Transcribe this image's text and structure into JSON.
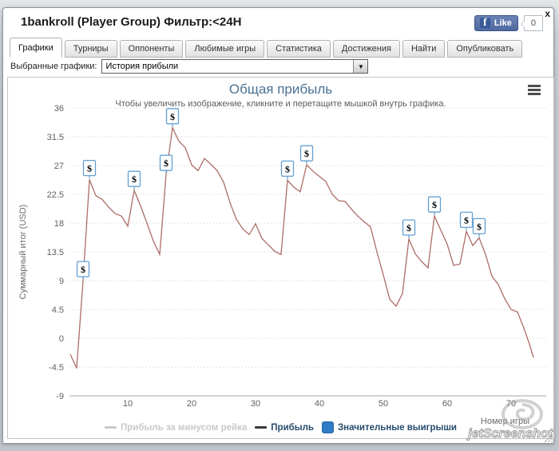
{
  "window": {
    "title": "1bankroll (Player Group) Фильтр:<24H",
    "close_glyph": "x"
  },
  "fb_widget": {
    "like_label": "Like",
    "count": "0"
  },
  "tabs": [
    {
      "label": "Графики",
      "active": true
    },
    {
      "label": "Турниры",
      "active": false
    },
    {
      "label": "Оппоненты",
      "active": false
    },
    {
      "label": "Любимые игры",
      "active": false
    },
    {
      "label": "Статистика",
      "active": false
    },
    {
      "label": "Достижения",
      "active": false
    },
    {
      "label": "Найти",
      "active": false
    },
    {
      "label": "Опубликовать",
      "active": false
    }
  ],
  "graph_select": {
    "label": "Выбранные графики:",
    "value": "История прибыли"
  },
  "watermark": {
    "text": "jetScreenshot"
  },
  "colors": {
    "accent_blue": "#2f7bc4",
    "profit_line": "#ad6d68",
    "flag_border": "#64a0d2",
    "hidden_legend": "#c9c9c9",
    "legend_text": "#274b6d",
    "chart_title": "#4a7294",
    "axis_text": "#606060"
  },
  "chart_data": {
    "type": "line",
    "title": "Общая прибыль",
    "subtitle": "Чтобы увеличить изображение, кликните и перетащите мышкой внутрь графика.",
    "xlabel": "Номер игры",
    "ylabel": "Суммарный итог (USD)",
    "xlim": [
      0.9,
      75.5
    ],
    "ylim": [
      -9,
      36
    ],
    "xticks": [
      10,
      20,
      30,
      40,
      50,
      60,
      70
    ],
    "yticks": [
      36,
      31.5,
      27,
      22.5,
      18,
      13.5,
      9,
      4.5,
      0,
      -4.5,
      -9
    ],
    "grid": "horizontal-dotted",
    "legend_position": "bottom-center",
    "series": [
      {
        "name": "Прибыль за минусом рейка",
        "type": "line",
        "visible": false,
        "color": "#cccccc",
        "points": []
      },
      {
        "name": "Прибыль",
        "type": "line",
        "visible": true,
        "color": "#ad6d68",
        "legend_swatch_color": "#3a3a3a",
        "points": [
          [
            1,
            -2.5
          ],
          [
            2,
            -4.7
          ],
          [
            3,
            9
          ],
          [
            4,
            24.8
          ],
          [
            5,
            22.3
          ],
          [
            6,
            21.7
          ],
          [
            7,
            20.5
          ],
          [
            8,
            19.5
          ],
          [
            9,
            19.1
          ],
          [
            10,
            17.5
          ],
          [
            11,
            23.1
          ],
          [
            12,
            20.7
          ],
          [
            13,
            18
          ],
          [
            14,
            15.2
          ],
          [
            15,
            13.1
          ],
          [
            16,
            25.6
          ],
          [
            17,
            32.9
          ],
          [
            18,
            30.8
          ],
          [
            19,
            29.8
          ],
          [
            20,
            27.1
          ],
          [
            21,
            26.2
          ],
          [
            22,
            28.1
          ],
          [
            23,
            27.2
          ],
          [
            24,
            26.2
          ],
          [
            25,
            24.4
          ],
          [
            26,
            21.2
          ],
          [
            27,
            18.6
          ],
          [
            28,
            17.1
          ],
          [
            29,
            16.2
          ],
          [
            30,
            17.9
          ],
          [
            31,
            15.6
          ],
          [
            32,
            14.6
          ],
          [
            33,
            13.6
          ],
          [
            34,
            13.1
          ],
          [
            35,
            24.7
          ],
          [
            36,
            23.6
          ],
          [
            37,
            22.9
          ],
          [
            38,
            27.1
          ],
          [
            39,
            26.1
          ],
          [
            40,
            25.3
          ],
          [
            41,
            24.5
          ],
          [
            42,
            22.5
          ],
          [
            43,
            21.5
          ],
          [
            44,
            21.4
          ],
          [
            45,
            20.2
          ],
          [
            46,
            19.1
          ],
          [
            47,
            18.2
          ],
          [
            48,
            17.4
          ],
          [
            49,
            13.5
          ],
          [
            50,
            9.9
          ],
          [
            51,
            6.1
          ],
          [
            52,
            5
          ],
          [
            53,
            7
          ],
          [
            54,
            15.5
          ],
          [
            55,
            13.2
          ],
          [
            56,
            12
          ],
          [
            57,
            11
          ],
          [
            58,
            19.1
          ],
          [
            59,
            16.9
          ],
          [
            60,
            14.7
          ],
          [
            61,
            11.4
          ],
          [
            62,
            11.6
          ],
          [
            63,
            16.7
          ],
          [
            64,
            14.5
          ],
          [
            65,
            15.7
          ],
          [
            66,
            13.1
          ],
          [
            67,
            9.7
          ],
          [
            68,
            8.4
          ],
          [
            69,
            6.2
          ],
          [
            70,
            4.5
          ],
          [
            71,
            4.1
          ],
          [
            72,
            1.6
          ],
          [
            72.8,
            -0.7
          ],
          [
            73.5,
            -3
          ]
        ]
      },
      {
        "name": "Значительные выигрыши",
        "type": "flags",
        "visible": true,
        "symbol": "$",
        "color": "#2f7bc4",
        "games": [
          3,
          4,
          11,
          16,
          17,
          35,
          38,
          54,
          58,
          63,
          65
        ]
      }
    ]
  }
}
